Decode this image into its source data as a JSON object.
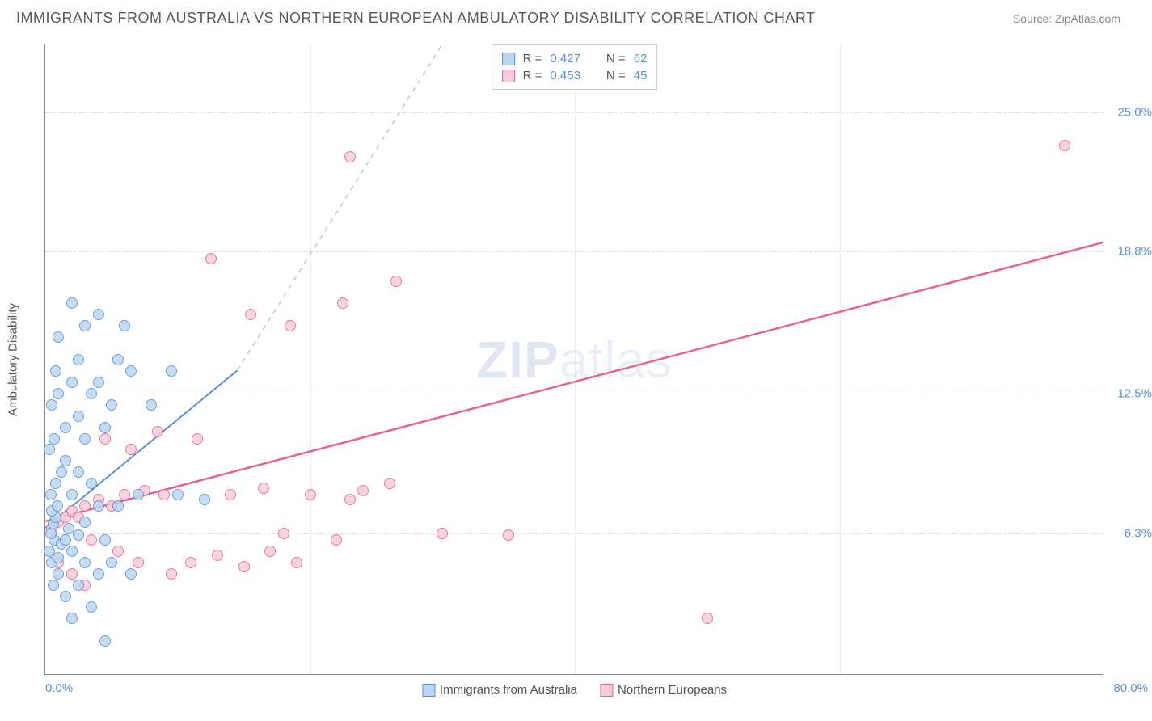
{
  "header": {
    "title": "IMMIGRANTS FROM AUSTRALIA VS NORTHERN EUROPEAN AMBULATORY DISABILITY CORRELATION CHART",
    "source_label": "Source:",
    "source_name": "ZipAtlas.com"
  },
  "watermark": {
    "part1": "ZIP",
    "part2": "atlas"
  },
  "chart": {
    "type": "scatter",
    "background_color": "#ffffff",
    "grid_color": "#dddddd",
    "axis_color": "#888888",
    "y_axis_label": "Ambulatory Disability",
    "xlim": [
      0.0,
      80.0
    ],
    "ylim": [
      0.0,
      28.0
    ],
    "x_min_label": "0.0%",
    "x_max_label": "80.0%",
    "y_ticks": [
      {
        "value": 6.3,
        "label": "6.3%"
      },
      {
        "value": 12.5,
        "label": "12.5%"
      },
      {
        "value": 18.8,
        "label": "18.8%"
      },
      {
        "value": 25.0,
        "label": "25.0%"
      }
    ],
    "x_grid_values": [
      20,
      40,
      60
    ],
    "marker_size": 14,
    "marker_border_width": 1.5,
    "series": {
      "a": {
        "name": "Immigrants from Australia",
        "fill_color": "#bcd7f2",
        "border_color": "#5b8fd6",
        "r_value": "0.427",
        "n_value": "62",
        "trend": {
          "x1": 0,
          "y1": 6.5,
          "x2": 14.5,
          "y2": 13.5,
          "dash_to_x": 30,
          "dash_to_y": 28,
          "stroke_width": 2
        },
        "points": [
          [
            0.3,
            5.5
          ],
          [
            0.5,
            5.0
          ],
          [
            0.7,
            6.0
          ],
          [
            0.4,
            6.3
          ],
          [
            0.6,
            6.7
          ],
          [
            0.8,
            7.0
          ],
          [
            1.0,
            5.2
          ],
          [
            1.2,
            5.8
          ],
          [
            0.5,
            7.3
          ],
          [
            0.9,
            7.5
          ],
          [
            1.5,
            6.0
          ],
          [
            1.8,
            6.5
          ],
          [
            0.6,
            4.0
          ],
          [
            1.0,
            4.5
          ],
          [
            2.0,
            5.5
          ],
          [
            2.5,
            6.2
          ],
          [
            3.0,
            6.8
          ],
          [
            0.4,
            8.0
          ],
          [
            0.8,
            8.5
          ],
          [
            1.2,
            9.0
          ],
          [
            1.5,
            9.5
          ],
          [
            2.0,
            8.0
          ],
          [
            2.5,
            9.0
          ],
          [
            3.5,
            8.5
          ],
          [
            4.0,
            7.5
          ],
          [
            0.3,
            10.0
          ],
          [
            0.7,
            10.5
          ],
          [
            1.5,
            11.0
          ],
          [
            2.5,
            11.5
          ],
          [
            3.0,
            10.5
          ],
          [
            0.5,
            12.0
          ],
          [
            1.0,
            12.5
          ],
          [
            2.0,
            13.0
          ],
          [
            3.5,
            12.5
          ],
          [
            4.5,
            11.0
          ],
          [
            0.8,
            13.5
          ],
          [
            2.5,
            14.0
          ],
          [
            4.0,
            13.0
          ],
          [
            5.0,
            12.0
          ],
          [
            1.0,
            15.0
          ],
          [
            3.0,
            15.5
          ],
          [
            5.5,
            14.0
          ],
          [
            6.5,
            13.5
          ],
          [
            2.0,
            16.5
          ],
          [
            4.0,
            16.0
          ],
          [
            6.0,
            15.5
          ],
          [
            8.0,
            12.0
          ],
          [
            9.5,
            13.5
          ],
          [
            1.5,
            3.5
          ],
          [
            2.5,
            4.0
          ],
          [
            4.0,
            4.5
          ],
          [
            5.0,
            5.0
          ],
          [
            6.5,
            4.5
          ],
          [
            3.5,
            3.0
          ],
          [
            5.5,
            7.5
          ],
          [
            7.0,
            8.0
          ],
          [
            10.0,
            8.0
          ],
          [
            12.0,
            7.8
          ],
          [
            4.5,
            1.5
          ],
          [
            2.0,
            2.5
          ],
          [
            3.0,
            5.0
          ],
          [
            4.5,
            6.0
          ]
        ]
      },
      "b": {
        "name": "Northern Europeans",
        "fill_color": "#f6cdd9",
        "border_color": "#e76393",
        "r_value": "0.453",
        "n_value": "45",
        "trend": {
          "x1": 0,
          "y1": 6.8,
          "x2": 80,
          "y2": 19.2,
          "stroke_width": 2.5
        },
        "points": [
          [
            0.5,
            6.5
          ],
          [
            1.0,
            6.8
          ],
          [
            1.5,
            7.0
          ],
          [
            2.0,
            7.3
          ],
          [
            2.5,
            7.0
          ],
          [
            3.0,
            7.5
          ],
          [
            4.0,
            7.8
          ],
          [
            5.0,
            7.5
          ],
          [
            6.0,
            8.0
          ],
          [
            7.5,
            8.2
          ],
          [
            9.0,
            8.0
          ],
          [
            3.5,
            6.0
          ],
          [
            5.5,
            5.5
          ],
          [
            7.0,
            5.0
          ],
          [
            9.5,
            4.5
          ],
          [
            11.0,
            5.0
          ],
          [
            13.0,
            5.3
          ],
          [
            15.0,
            4.8
          ],
          [
            17.0,
            5.5
          ],
          [
            19.0,
            5.0
          ],
          [
            4.5,
            10.5
          ],
          [
            6.5,
            10.0
          ],
          [
            8.5,
            10.8
          ],
          [
            11.5,
            10.5
          ],
          [
            14.0,
            8.0
          ],
          [
            16.5,
            8.3
          ],
          [
            20.0,
            8.0
          ],
          [
            23.0,
            7.8
          ],
          [
            26.0,
            8.5
          ],
          [
            30.0,
            6.3
          ],
          [
            22.0,
            6.0
          ],
          [
            18.0,
            6.3
          ],
          [
            12.5,
            18.5
          ],
          [
            15.5,
            16.0
          ],
          [
            18.5,
            15.5
          ],
          [
            22.5,
            16.5
          ],
          [
            26.5,
            17.5
          ],
          [
            23.0,
            23.0
          ],
          [
            50.0,
            2.5
          ],
          [
            77.0,
            23.5
          ],
          [
            1.0,
            5.0
          ],
          [
            2.0,
            4.5
          ],
          [
            3.0,
            4.0
          ],
          [
            35.0,
            6.2
          ],
          [
            24.0,
            8.2
          ]
        ]
      }
    },
    "legend_top": {
      "r_label": "R =",
      "n_label": "N ="
    },
    "label_fontsize": 15
  }
}
